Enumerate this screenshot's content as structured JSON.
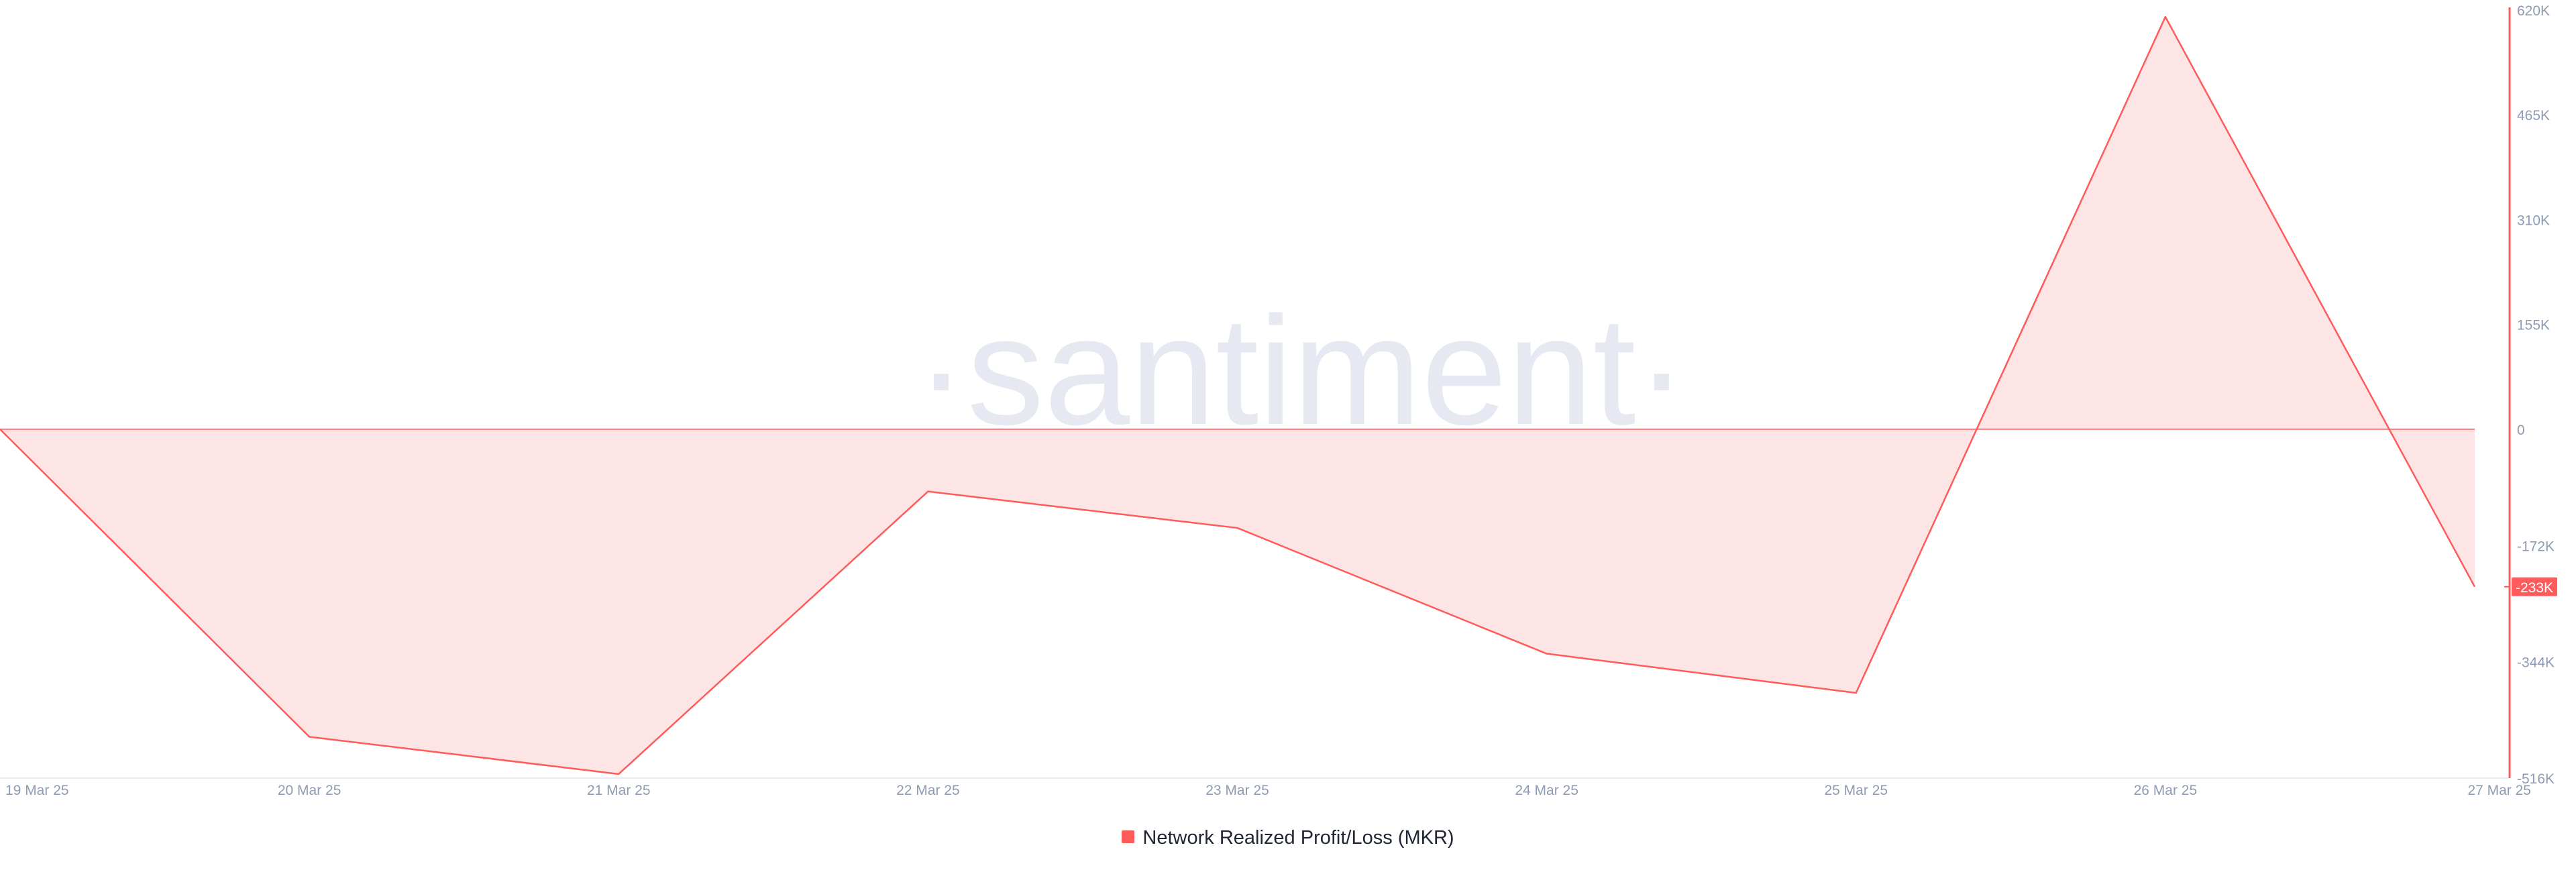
{
  "watermark": "·santiment·",
  "chart_data": {
    "type": "area",
    "x": [
      "19 Mar 25",
      "20 Mar 25",
      "21 Mar 25",
      "22 Mar 25",
      "23 Mar 25",
      "24 Mar 25",
      "25 Mar 25",
      "26 Mar 25",
      "27 Mar 25"
    ],
    "series": [
      {
        "name": "Network Realized Profit/Loss (MKR)",
        "values": [
          0,
          -455000,
          -510000,
          -92000,
          -146000,
          -332000,
          -390000,
          610000,
          -233000
        ],
        "color": "#ff5b5b",
        "fill": "#fde4e5"
      }
    ],
    "ylim": [
      -516000,
      620000
    ],
    "yticks": [
      {
        "value": 620000,
        "label": "620K"
      },
      {
        "value": 465000,
        "label": "465K"
      },
      {
        "value": 310000,
        "label": "310K"
      },
      {
        "value": 155000,
        "label": "155K"
      },
      {
        "value": 0,
        "label": "0"
      },
      {
        "value": -172000,
        "label": "-172K"
      },
      {
        "value": -344000,
        "label": "-344K"
      },
      {
        "value": -516000,
        "label": "-516K"
      }
    ],
    "last_value_label": "-233K",
    "grid": false,
    "legend_position": "bottom-center",
    "axis_color": "#ff5b5b",
    "tick_color": "#8e9bb3",
    "watermark_color": "#e6e9f1"
  }
}
